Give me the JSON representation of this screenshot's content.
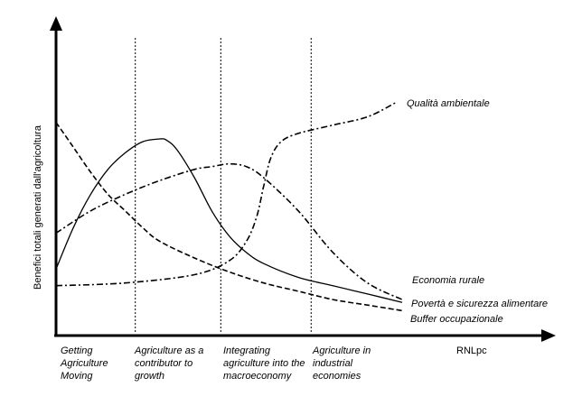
{
  "chart_data": {
    "type": "line",
    "title": "",
    "xlabel": "RNLpc",
    "ylabel": "Benefici totali generati dall'agricoltura",
    "xlim": [
      0,
      100
    ],
    "ylim": [
      0,
      100
    ],
    "grid": false,
    "x_stages": [
      {
        "name": "Getting Agriculture Moving",
        "lines": [
          "Getting",
          "Agriculture",
          "Moving"
        ]
      },
      {
        "name": "Agriculture as a contributor to growth",
        "lines": [
          "Agriculture as a",
          "contributor to",
          "growth"
        ]
      },
      {
        "name": "Integrating agriculture into the macroeconomy",
        "lines": [
          "Integrating",
          "agriculture into the",
          "macroeconomy"
        ]
      },
      {
        "name": "Agriculture in industrial economies",
        "lines": [
          "Agriculture in",
          "industrial",
          "economies"
        ]
      }
    ],
    "stage_boundaries_x": [
      22.9,
      47.6,
      73.7
    ],
    "series": [
      {
        "name": "Qualità ambientale",
        "style": "dash-dot",
        "x": [
          0,
          20,
          40,
          50,
          55,
          58,
          60,
          62,
          65,
          70,
          80,
          90,
          98
        ],
        "y": [
          18,
          19,
          22,
          27,
          34,
          43,
          54,
          64,
          70,
          73,
          76,
          79,
          84
        ]
      },
      {
        "name": "Economia rurale",
        "style": "dash-dot",
        "x": [
          0,
          10,
          20,
          30,
          40,
          45,
          50,
          55,
          60,
          70,
          80,
          90,
          100
        ],
        "y": [
          37,
          45,
          51,
          56,
          60,
          61,
          62,
          61,
          57,
          45,
          30,
          19,
          13
        ]
      },
      {
        "name": "Povertà e sicurezza alimentare",
        "style": "solid",
        "x": [
          0,
          5,
          10,
          15,
          20,
          25,
          30,
          32,
          35,
          40,
          45,
          50,
          55,
          60,
          70,
          80,
          90,
          100
        ],
        "y": [
          24,
          39,
          51,
          60,
          66,
          70,
          71,
          70.5,
          67,
          57,
          45,
          36,
          30,
          26,
          21,
          18,
          15,
          12
        ]
      },
      {
        "name": "Buffer occupazionale",
        "style": "dashed",
        "x": [
          0,
          5,
          10,
          15,
          20,
          25,
          30,
          40,
          50,
          60,
          70,
          80,
          90,
          100
        ],
        "y": [
          77,
          68,
          59,
          51,
          45,
          39,
          34,
          28,
          23,
          19,
          16,
          13,
          11,
          9
        ]
      }
    ]
  }
}
